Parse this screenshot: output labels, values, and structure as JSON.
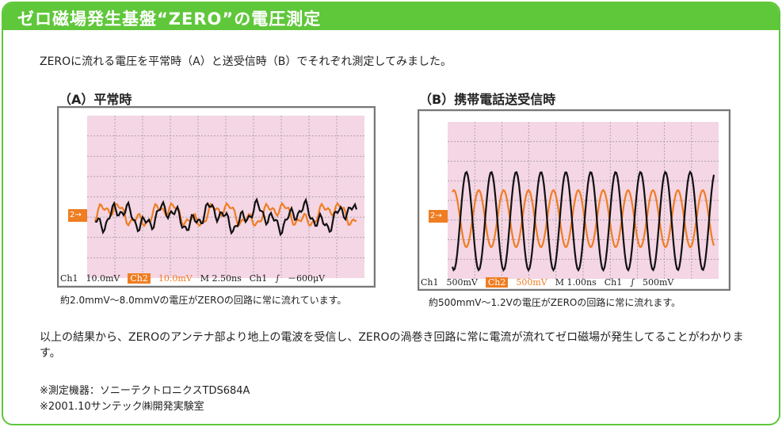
{
  "header": {
    "title": "ゼロ磁場発生基盤“ZERO”の電圧測定"
  },
  "intro": "ZEROに流れる電圧を平常時（A）と送受信時（B）でそれぞれ測定してみました。",
  "panel_a": {
    "label": "（A）平常時",
    "marker": "2→",
    "readout": {
      "ch1": "Ch1",
      "ch1_val": "10.0mV",
      "ch2": "Ch2",
      "ch2_val": "10.0mV",
      "time": "M 2.50ns",
      "trig_ch": "Ch1",
      "trig_sym": "∫",
      "trig_val": "－600μV"
    },
    "caption": "約2.0mmV〜8.0mmVの電圧がZEROの回路に常に流れています。"
  },
  "panel_b": {
    "label": "（B）携帯電話送受信時",
    "marker": "2→",
    "readout": {
      "ch1": "Ch1",
      "ch1_val": "500mV",
      "ch2": "Ch2",
      "ch2_val": "500mV",
      "time": "M 1.00ns",
      "trig_ch": "Ch1",
      "trig_sym": "∫",
      "trig_val": "500mV"
    },
    "caption": "約500mmV〜1.2Vの電圧がZEROの回路に常に流れます。"
  },
  "conclusion": "以上の結果から、ZEROのアンテナ部より地上の電波を受信し、ZEROの渦巻き回路に常に電流が流れてゼロ磁場が発生してることがわかります。",
  "notes": {
    "instrument": "※測定機器：ソニーテクトロニクスTDS684A",
    "lab": "※2001.10サンテック㈱開発実験室"
  },
  "colors": {
    "accent": "#5fc73a",
    "ch1": "#111111",
    "ch2": "#ef7d22",
    "screen": "#f4d6e4"
  }
}
